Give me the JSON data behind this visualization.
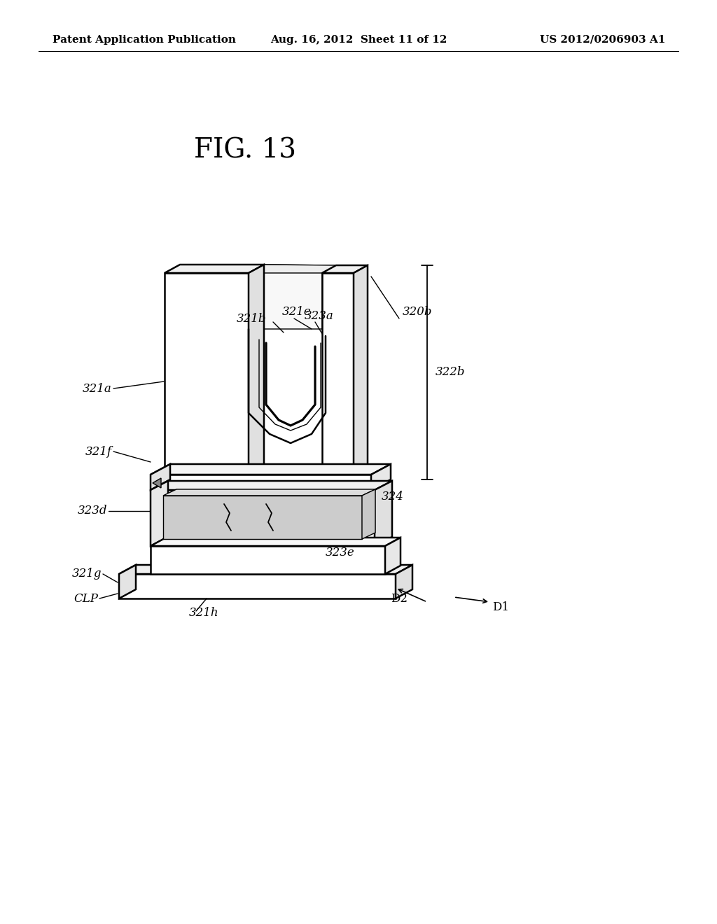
{
  "background_color": "#ffffff",
  "header_left": "Patent Application Publication",
  "header_mid": "Aug. 16, 2012  Sheet 11 of 12",
  "header_right": "US 2012/0206903 A1",
  "fig_title": "FIG. 13",
  "line_color": "#000000",
  "text_color": "#000000",
  "header_fontsize": 11,
  "title_fontsize": 26,
  "label_fontsize": 12,
  "lw_main": 1.8,
  "lw_thin": 1.0
}
